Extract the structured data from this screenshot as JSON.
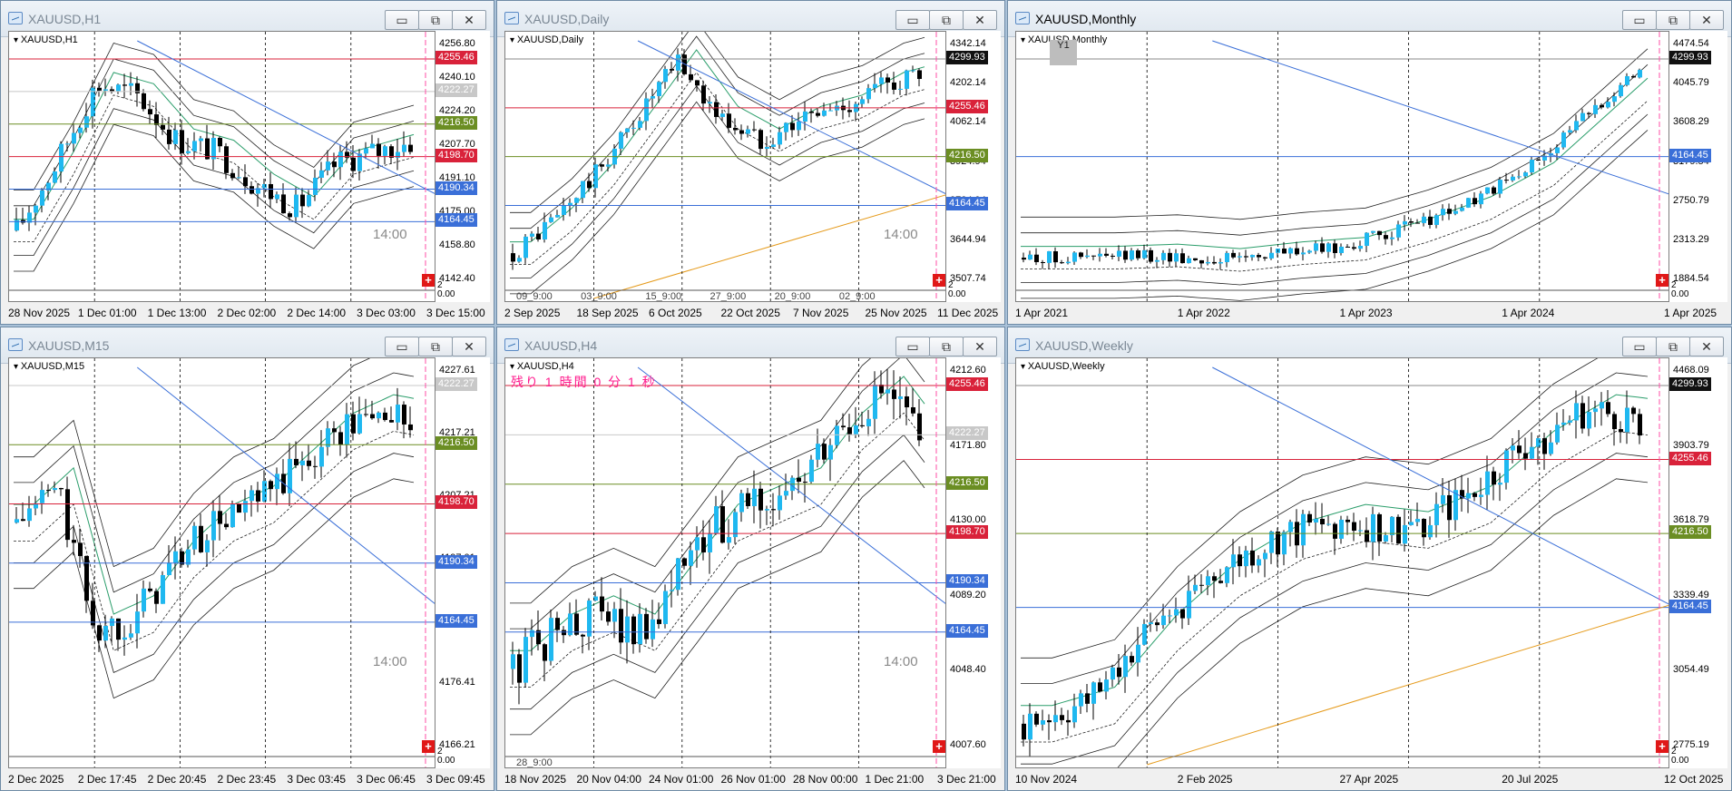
{
  "windows": [
    {
      "id": "h1",
      "title": "XAUUSD,H1",
      "symbol_label": "XAUUSD,H1",
      "right_ticks": [
        "4256.80",
        "4240.10",
        "4224.20",
        "4207.70",
        "4191.10",
        "4175.00",
        "4158.80",
        "4142.40"
      ],
      "badges": [
        {
          "value": "4255.46",
          "color": "#d9223a",
          "kind": "resistance"
        },
        {
          "value": "4222.27",
          "color": "#c8c8c8",
          "kind": "current"
        },
        {
          "value": "4216.50",
          "color": "#6b8e23",
          "kind": "pivot"
        },
        {
          "value": "4198.70",
          "color": "#d9223a",
          "kind": "resistance"
        },
        {
          "value": "4190.34",
          "color": "#3a6fd8",
          "kind": "support"
        },
        {
          "value": "4164.45",
          "color": "#3a6fd8",
          "kind": "support"
        }
      ],
      "sub_values": [
        "2",
        "0.00"
      ],
      "x_ticks": [
        "28 Nov 2025",
        "1 Dec 01:00",
        "1 Dec 13:00",
        "2 Dec 02:00",
        "2 Dec 14:00",
        "3 Dec 03:00",
        "3 Dec 15:00"
      ],
      "time_marker": "14:00",
      "countdown": "",
      "sub_labels": []
    },
    {
      "id": "daily",
      "title": "XAUUSD,Daily",
      "symbol_label": "XAUUSD,Daily",
      "right_ticks": [
        "4342.14",
        "4202.14",
        "4062.14",
        "3924.94",
        "3784.94",
        "3644.94",
        "3507.74"
      ],
      "badges": [
        {
          "value": "4299.93",
          "color": "#111111",
          "kind": "current"
        },
        {
          "value": "4255.46",
          "color": "#d9223a",
          "kind": "resistance"
        },
        {
          "value": "4216.50",
          "color": "#6b8e23",
          "kind": "pivot"
        },
        {
          "value": "4164.45",
          "color": "#3a6fd8",
          "kind": "support"
        }
      ],
      "sub_values": [
        "2",
        "0.00"
      ],
      "x_ticks": [
        "2 Sep 2025",
        "18 Sep 2025",
        "6 Oct 2025",
        "22 Oct 2025",
        "7 Nov 2025",
        "25 Nov 2025",
        "11 Dec 2025"
      ],
      "time_marker": "14:00",
      "countdown": "",
      "sub_labels": [
        "09_9:00",
        "03_9:00",
        "15_9:00",
        "27_9:00",
        "20_9:00",
        "02_9:00"
      ]
    },
    {
      "id": "monthly",
      "title": "XAUUSD,Monthly",
      "symbol_label": "XAUUSD,Monthly",
      "right_ticks": [
        "4474.54",
        "4045.79",
        "3608.29",
        "3179.54",
        "2750.79",
        "2313.29",
        "1884.54"
      ],
      "badges": [
        {
          "value": "4299.93",
          "color": "#111111",
          "kind": "current"
        },
        {
          "value": "4164.45",
          "color": "#3a6fd8",
          "kind": "support"
        }
      ],
      "sub_values": [
        "2",
        "0.00"
      ],
      "x_ticks": [
        "1 Apr 2021",
        "1 Apr 2022",
        "1 Apr 2023",
        "1 Apr 2024",
        "1 Apr 2025"
      ],
      "time_marker": "",
      "countdown": "",
      "sub_labels": [],
      "marker_tag": "Y1"
    },
    {
      "id": "m15",
      "title": "XAUUSD,M15",
      "symbol_label": "XAUUSD,M15",
      "right_ticks": [
        "4227.61",
        "4217.21",
        "4207.21",
        "4197.01",
        "4186.81",
        "4176.41",
        "4166.21"
      ],
      "badges": [
        {
          "value": "4222.27",
          "color": "#c8c8c8",
          "kind": "current"
        },
        {
          "value": "4216.50",
          "color": "#6b8e23",
          "kind": "pivot"
        },
        {
          "value": "4198.70",
          "color": "#d9223a",
          "kind": "resistance"
        },
        {
          "value": "4190.34",
          "color": "#3a6fd8",
          "kind": "support"
        },
        {
          "value": "4164.45",
          "color": "#3a6fd8",
          "kind": "support"
        }
      ],
      "sub_values": [
        "2",
        "0.00"
      ],
      "x_ticks": [
        "2 Dec 2025",
        "2 Dec 17:45",
        "2 Dec 20:45",
        "2 Dec 23:45",
        "3 Dec 03:45",
        "3 Dec 06:45",
        "3 Dec 09:45"
      ],
      "time_marker": "14:00",
      "countdown": "",
      "sub_labels": []
    },
    {
      "id": "h4",
      "title": "XAUUSD,H4",
      "symbol_label": "XAUUSD,H4",
      "right_ticks": [
        "4212.60",
        "4171.80",
        "4130.00",
        "4089.20",
        "4048.40",
        "4007.60"
      ],
      "badges": [
        {
          "value": "4255.46",
          "color": "#d9223a",
          "kind": "resistance"
        },
        {
          "value": "4222.27",
          "color": "#c8c8c8",
          "kind": "current"
        },
        {
          "value": "4216.50",
          "color": "#6b8e23",
          "kind": "pivot"
        },
        {
          "value": "4198.70",
          "color": "#d9223a",
          "kind": "resistance"
        },
        {
          "value": "4190.34",
          "color": "#3a6fd8",
          "kind": "support"
        },
        {
          "value": "4164.45",
          "color": "#3a6fd8",
          "kind": "support"
        }
      ],
      "sub_values": [],
      "x_ticks": [
        "18 Nov 2025",
        "20 Nov 04:00",
        "24 Nov 01:00",
        "26 Nov 01:00",
        "28 Nov 00:00",
        "1 Dec 21:00",
        "3 Dec 21:00"
      ],
      "time_marker": "14:00",
      "countdown": "残り 1 時間 0 分 1 秒",
      "sub_labels": [
        "28_9:00"
      ]
    },
    {
      "id": "weekly",
      "title": "XAUUSD,Weekly",
      "symbol_label": "XAUUSD,Weekly",
      "right_ticks": [
        "4468.09",
        "3903.79",
        "3618.79",
        "3339.49",
        "3054.49",
        "2775.19"
      ],
      "badges": [
        {
          "value": "4299.93",
          "color": "#111111",
          "kind": "current"
        },
        {
          "value": "4255.46",
          "color": "#d9223a",
          "kind": "resistance"
        },
        {
          "value": "4216.50",
          "color": "#6b8e23",
          "kind": "pivot"
        },
        {
          "value": "4164.45",
          "color": "#3a6fd8",
          "kind": "support"
        }
      ],
      "sub_values": [
        "2",
        "0.00"
      ],
      "x_ticks": [
        "10 Nov 2024",
        "2 Feb 2025",
        "27 Apr 2025",
        "20 Jul 2025",
        "12 Oct 2025"
      ],
      "time_marker": "",
      "countdown": "",
      "sub_labels": []
    }
  ],
  "window_buttons": {
    "minimize": "▭",
    "restore": "⧉",
    "close": "✕"
  },
  "plus_label": "+"
}
